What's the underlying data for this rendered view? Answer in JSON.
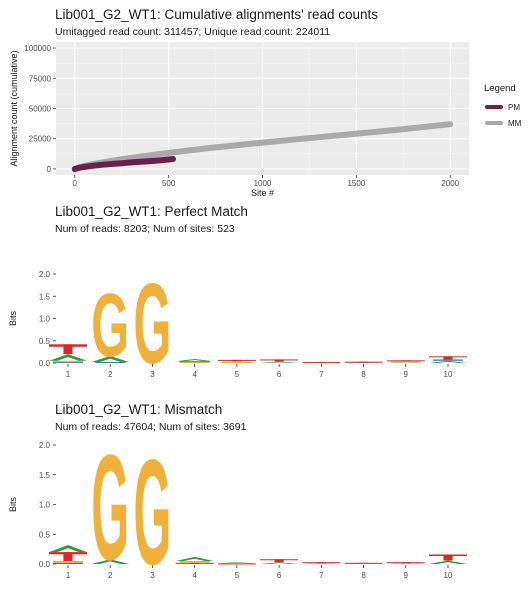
{
  "panels": {
    "cumulative": {
      "title": "Lib001_G2_WT1: Cumulative alignments' read counts",
      "subtitle": "Umitagged read count: 311457; Unique read count: 224011"
    },
    "perfect": {
      "title": "Lib001_G2_WT1: Perfect Match",
      "subtitle": "Num of reads: 8203; Num of sites: 523"
    },
    "mismatch": {
      "title": "Lib001_G2_WT1: Mismatch",
      "subtitle": "Num of reads: 47604; Num of sites: 3691"
    }
  },
  "colors": {
    "panel_bg": "#ebebeb",
    "grid": "#ffffff",
    "pm": "#6b1f4a",
    "mm": "#a9a9a9",
    "A": "#2e9a45",
    "C": "#2f6fb5",
    "G": "#f0b13a",
    "T": "#d42a2a"
  },
  "chart_data": [
    {
      "type": "line",
      "title": "Lib001_G2_WT1: Cumulative alignments' read counts",
      "xlabel": "Site #",
      "ylabel": "Alignment count (cumulative)",
      "xlim": [
        -100,
        2100
      ],
      "ylim": [
        -5000,
        105000
      ],
      "xticks": [
        0,
        500,
        1000,
        1500,
        2000
      ],
      "xtick_labels": [
        "0",
        "500",
        "1000",
        "1500",
        "2000"
      ],
      "yticks": [
        0,
        25000,
        50000,
        75000,
        100000
      ],
      "ytick_labels": [
        "0",
        "25000",
        "50000",
        "75000",
        "100000"
      ],
      "grid": true,
      "legend": {
        "title": "Legend",
        "placement": "right"
      },
      "series": [
        {
          "name": "PM",
          "color": "#6b1f4a",
          "x": [
            0,
            25,
            50,
            100,
            150,
            200,
            250,
            300,
            350,
            400,
            450,
            500,
            523
          ],
          "y": [
            0,
            1000,
            1700,
            2700,
            3500,
            4200,
            4800,
            5400,
            6000,
            6500,
            7100,
            7800,
            8203
          ]
        },
        {
          "name": "MM",
          "color": "#a9a9a9",
          "x": [
            0,
            50,
            100,
            200,
            300,
            400,
            500,
            700,
            1000,
            1300,
            1500,
            1700,
            2000
          ],
          "y": [
            0,
            2500,
            4000,
            6800,
            9200,
            11300,
            13300,
            17000,
            21800,
            26300,
            29200,
            32100,
            37000
          ]
        }
      ]
    },
    {
      "type": "bar",
      "title": "Lib001_G2_WT1: Perfect Match",
      "ylabel": "Bits",
      "categories": [
        "1",
        "2",
        "3",
        "4",
        "5",
        "6",
        "7",
        "8",
        "9",
        "10"
      ],
      "ylim": [
        0,
        2.0
      ],
      "yticks": [
        0.0,
        0.5,
        1.0,
        1.5,
        2.0
      ],
      "ytick_labels": [
        "0.0",
        "0.5",
        "1.0",
        "1.5",
        "2.0"
      ],
      "stacks": [
        [
          {
            "l": "C",
            "h": 0.02
          },
          {
            "l": "G",
            "h": 0.03
          },
          {
            "l": "A",
            "h": 0.15
          },
          {
            "l": "T",
            "h": 0.22
          }
        ],
        [
          {
            "l": "C",
            "h": 0.02
          },
          {
            "l": "A",
            "h": 0.14
          },
          {
            "l": "G",
            "h": 1.45
          }
        ],
        [
          {
            "l": "G",
            "h": 1.85
          }
        ],
        [
          {
            "l": "G",
            "h": 0.02
          },
          {
            "l": "C",
            "h": 0.02
          },
          {
            "l": "A",
            "h": 0.05
          }
        ],
        [
          {
            "l": "G",
            "h": 0.02
          },
          {
            "l": "A",
            "h": 0.02
          },
          {
            "l": "T",
            "h": 0.03
          }
        ],
        [
          {
            "l": "A",
            "h": 0.03
          },
          {
            "l": "T",
            "h": 0.05
          }
        ],
        [
          {
            "l": "A",
            "h": 0.01
          },
          {
            "l": "T",
            "h": 0.01
          }
        ],
        [
          {
            "l": "A",
            "h": 0.01
          },
          {
            "l": "T",
            "h": 0.02
          }
        ],
        [
          {
            "l": "A",
            "h": 0.02
          },
          {
            "l": "G",
            "h": 0.02
          },
          {
            "l": "T",
            "h": 0.02
          }
        ],
        [
          {
            "l": "A",
            "h": 0.05
          },
          {
            "l": "C",
            "h": 0.03
          },
          {
            "l": "T",
            "h": 0.07
          }
        ]
      ]
    },
    {
      "type": "bar",
      "title": "Lib001_G2_WT1: Mismatch",
      "ylabel": "Bits",
      "categories": [
        "1",
        "2",
        "3",
        "4",
        "5",
        "6",
        "7",
        "8",
        "9",
        "10"
      ],
      "ylim": [
        0,
        2.0
      ],
      "yticks": [
        0.0,
        0.5,
        1.0,
        1.5,
        2.0
      ],
      "ytick_labels": [
        "0.0",
        "0.5",
        "1.0",
        "1.5",
        "2.0"
      ],
      "stacks": [
        [
          {
            "l": "C",
            "h": 0.02
          },
          {
            "l": "G",
            "h": 0.03
          },
          {
            "l": "T",
            "h": 0.15
          },
          {
            "l": "A",
            "h": 0.12
          }
        ],
        [
          {
            "l": "A",
            "h": 0.08
          },
          {
            "l": "G",
            "h": 1.82
          }
        ],
        [
          {
            "l": "G",
            "h": 1.82
          }
        ],
        [
          {
            "l": "T",
            "h": 0.02
          },
          {
            "l": "G",
            "h": 0.03
          },
          {
            "l": "A",
            "h": 0.07
          }
        ],
        [
          {
            "l": "T",
            "h": 0.01
          },
          {
            "l": "A",
            "h": 0.02
          }
        ],
        [
          {
            "l": "A",
            "h": 0.03
          },
          {
            "l": "T",
            "h": 0.05
          }
        ],
        [
          {
            "l": "A",
            "h": 0.01
          },
          {
            "l": "T",
            "h": 0.02
          }
        ],
        [
          {
            "l": "A",
            "h": 0.01
          },
          {
            "l": "T",
            "h": 0.01
          }
        ],
        [
          {
            "l": "A",
            "h": 0.01
          },
          {
            "l": "T",
            "h": 0.02
          }
        ],
        [
          {
            "l": "A",
            "h": 0.06
          },
          {
            "l": "T",
            "h": 0.1
          }
        ]
      ]
    }
  ]
}
